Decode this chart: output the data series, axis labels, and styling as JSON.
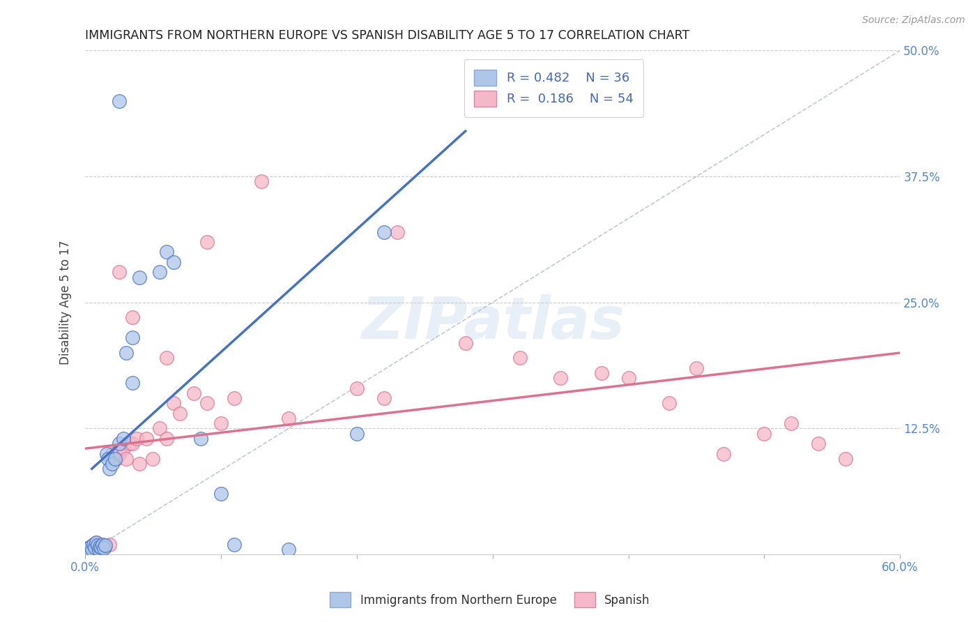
{
  "title": "IMMIGRANTS FROM NORTHERN EUROPE VS SPANISH DISABILITY AGE 5 TO 17 CORRELATION CHART",
  "source": "Source: ZipAtlas.com",
  "ylabel": "Disability Age 5 to 17",
  "xlim": [
    0.0,
    0.6
  ],
  "ylim": [
    0.0,
    0.5
  ],
  "xticks": [
    0.0,
    0.1,
    0.2,
    0.3,
    0.4,
    0.5,
    0.6
  ],
  "xticklabels": [
    "0.0%",
    "",
    "",
    "",
    "",
    "",
    "60.0%"
  ],
  "yticks": [
    0.0,
    0.125,
    0.25,
    0.375,
    0.5
  ],
  "yticklabels": [
    "",
    "12.5%",
    "25.0%",
    "37.5%",
    "50.0%"
  ],
  "watermark": "ZIPatlas",
  "legend1_label": "Immigrants from Northern Europe",
  "legend2_label": "Spanish",
  "r1": "0.482",
  "n1": "36",
  "r2": "0.186",
  "n2": "54",
  "color_blue": "#aec6e8",
  "color_pink": "#f5b8c8",
  "color_blue_line": "#4472c4",
  "color_pink_line": "#e07090",
  "color_diag_line": "#b0bccc",
  "blue_x": [
    0.001,
    0.002,
    0.003,
    0.004,
    0.005,
    0.006,
    0.007,
    0.008,
    0.009,
    0.01,
    0.011,
    0.012,
    0.013,
    0.014,
    0.015,
    0.016,
    0.017,
    0.018,
    0.02,
    0.022,
    0.025,
    0.028,
    0.03,
    0.035,
    0.04,
    0.055,
    0.06,
    0.065,
    0.085,
    0.1,
    0.11,
    0.15,
    0.2,
    0.22,
    0.035,
    0.025
  ],
  "blue_y": [
    0.003,
    0.006,
    0.004,
    0.008,
    0.005,
    0.01,
    0.007,
    0.012,
    0.009,
    0.005,
    0.008,
    0.007,
    0.01,
    0.006,
    0.009,
    0.1,
    0.095,
    0.085,
    0.09,
    0.095,
    0.11,
    0.115,
    0.2,
    0.215,
    0.275,
    0.28,
    0.3,
    0.29,
    0.115,
    0.06,
    0.01,
    0.005,
    0.12,
    0.32,
    0.17,
    0.45
  ],
  "pink_x": [
    0.001,
    0.002,
    0.003,
    0.004,
    0.005,
    0.006,
    0.007,
    0.008,
    0.009,
    0.01,
    0.011,
    0.012,
    0.015,
    0.018,
    0.02,
    0.023,
    0.025,
    0.028,
    0.03,
    0.033,
    0.035,
    0.038,
    0.04,
    0.045,
    0.05,
    0.055,
    0.06,
    0.065,
    0.07,
    0.08,
    0.09,
    0.1,
    0.11,
    0.15,
    0.2,
    0.22,
    0.23,
    0.28,
    0.32,
    0.35,
    0.38,
    0.4,
    0.43,
    0.45,
    0.47,
    0.5,
    0.52,
    0.54,
    0.56,
    0.025,
    0.035,
    0.06,
    0.09,
    0.13
  ],
  "pink_y": [
    0.004,
    0.006,
    0.005,
    0.008,
    0.007,
    0.01,
    0.008,
    0.012,
    0.01,
    0.009,
    0.007,
    0.005,
    0.008,
    0.01,
    0.1,
    0.095,
    0.1,
    0.105,
    0.095,
    0.11,
    0.11,
    0.115,
    0.09,
    0.115,
    0.095,
    0.125,
    0.115,
    0.15,
    0.14,
    0.16,
    0.15,
    0.13,
    0.155,
    0.135,
    0.165,
    0.155,
    0.32,
    0.21,
    0.195,
    0.175,
    0.18,
    0.175,
    0.15,
    0.185,
    0.1,
    0.12,
    0.13,
    0.11,
    0.095,
    0.28,
    0.235,
    0.195,
    0.31,
    0.37
  ],
  "blue_line_x": [
    0.005,
    0.28
  ],
  "blue_line_y": [
    0.085,
    0.42
  ],
  "pink_line_x": [
    0.0,
    0.6
  ],
  "pink_line_y": [
    0.105,
    0.2
  ]
}
